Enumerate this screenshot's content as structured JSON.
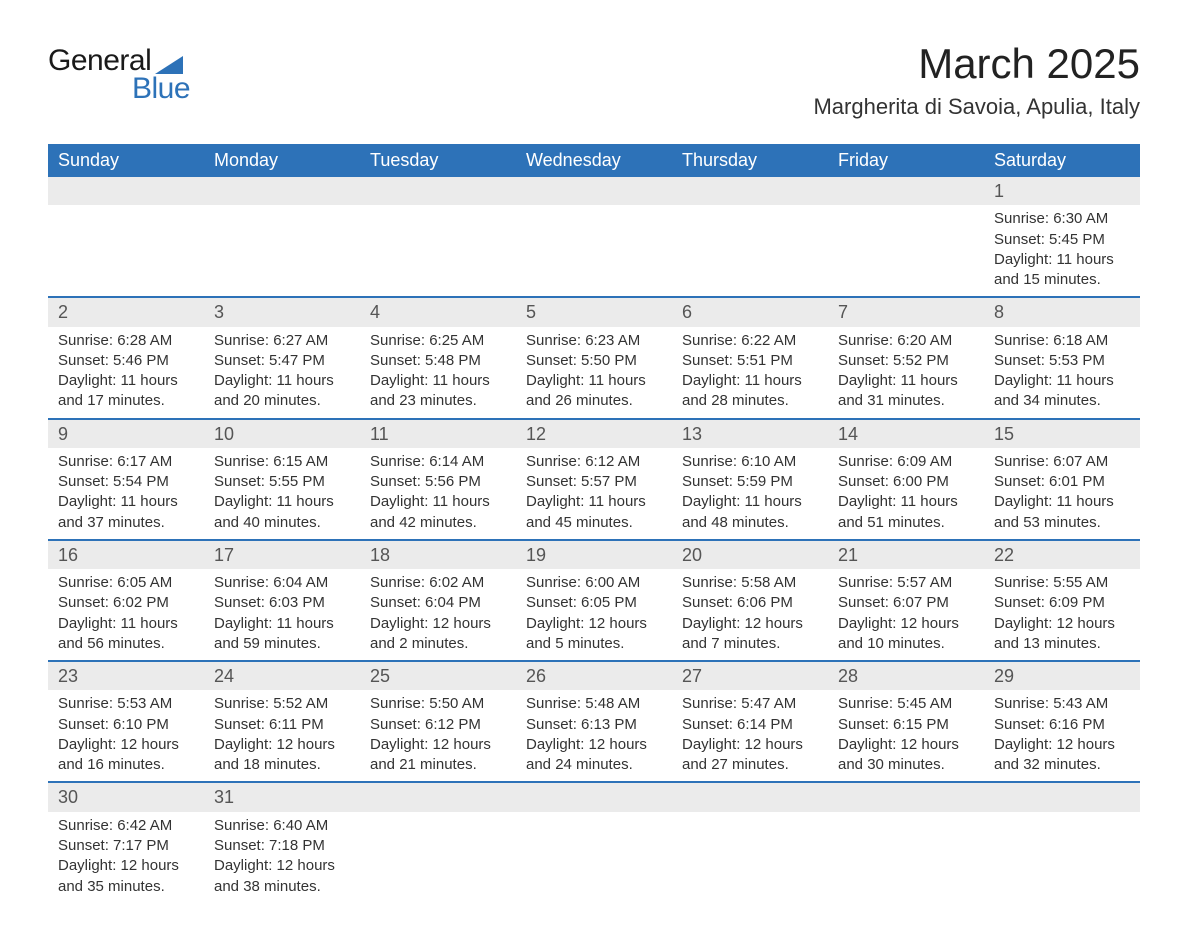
{
  "logo": {
    "word1": "General",
    "word2": "Blue",
    "triangle_color": "#2d72b8",
    "word1_color": "#1a1a1a",
    "word2_color": "#2d72b8"
  },
  "title": "March 2025",
  "location": "Margherita di Savoia, Apulia, Italy",
  "header_bg": "#2d72b8",
  "header_fg": "#ffffff",
  "row_separator_color": "#2d72b8",
  "daynum_bg": "#ebebeb",
  "text_color": "#333333",
  "day_headers": [
    "Sunday",
    "Monday",
    "Tuesday",
    "Wednesday",
    "Thursday",
    "Friday",
    "Saturday"
  ],
  "weeks": [
    {
      "nums": [
        "",
        "",
        "",
        "",
        "",
        "",
        "1"
      ],
      "detail": [
        "",
        "",
        "",
        "",
        "",
        "",
        "Sunrise: 6:30 AM\nSunset: 5:45 PM\nDaylight: 11 hours and 15 minutes."
      ]
    },
    {
      "nums": [
        "2",
        "3",
        "4",
        "5",
        "6",
        "7",
        "8"
      ],
      "detail": [
        "Sunrise: 6:28 AM\nSunset: 5:46 PM\nDaylight: 11 hours and 17 minutes.",
        "Sunrise: 6:27 AM\nSunset: 5:47 PM\nDaylight: 11 hours and 20 minutes.",
        "Sunrise: 6:25 AM\nSunset: 5:48 PM\nDaylight: 11 hours and 23 minutes.",
        "Sunrise: 6:23 AM\nSunset: 5:50 PM\nDaylight: 11 hours and 26 minutes.",
        "Sunrise: 6:22 AM\nSunset: 5:51 PM\nDaylight: 11 hours and 28 minutes.",
        "Sunrise: 6:20 AM\nSunset: 5:52 PM\nDaylight: 11 hours and 31 minutes.",
        "Sunrise: 6:18 AM\nSunset: 5:53 PM\nDaylight: 11 hours and 34 minutes."
      ]
    },
    {
      "nums": [
        "9",
        "10",
        "11",
        "12",
        "13",
        "14",
        "15"
      ],
      "detail": [
        "Sunrise: 6:17 AM\nSunset: 5:54 PM\nDaylight: 11 hours and 37 minutes.",
        "Sunrise: 6:15 AM\nSunset: 5:55 PM\nDaylight: 11 hours and 40 minutes.",
        "Sunrise: 6:14 AM\nSunset: 5:56 PM\nDaylight: 11 hours and 42 minutes.",
        "Sunrise: 6:12 AM\nSunset: 5:57 PM\nDaylight: 11 hours and 45 minutes.",
        "Sunrise: 6:10 AM\nSunset: 5:59 PM\nDaylight: 11 hours and 48 minutes.",
        "Sunrise: 6:09 AM\nSunset: 6:00 PM\nDaylight: 11 hours and 51 minutes.",
        "Sunrise: 6:07 AM\nSunset: 6:01 PM\nDaylight: 11 hours and 53 minutes."
      ]
    },
    {
      "nums": [
        "16",
        "17",
        "18",
        "19",
        "20",
        "21",
        "22"
      ],
      "detail": [
        "Sunrise: 6:05 AM\nSunset: 6:02 PM\nDaylight: 11 hours and 56 minutes.",
        "Sunrise: 6:04 AM\nSunset: 6:03 PM\nDaylight: 11 hours and 59 minutes.",
        "Sunrise: 6:02 AM\nSunset: 6:04 PM\nDaylight: 12 hours and 2 minutes.",
        "Sunrise: 6:00 AM\nSunset: 6:05 PM\nDaylight: 12 hours and 5 minutes.",
        "Sunrise: 5:58 AM\nSunset: 6:06 PM\nDaylight: 12 hours and 7 minutes.",
        "Sunrise: 5:57 AM\nSunset: 6:07 PM\nDaylight: 12 hours and 10 minutes.",
        "Sunrise: 5:55 AM\nSunset: 6:09 PM\nDaylight: 12 hours and 13 minutes."
      ]
    },
    {
      "nums": [
        "23",
        "24",
        "25",
        "26",
        "27",
        "28",
        "29"
      ],
      "detail": [
        "Sunrise: 5:53 AM\nSunset: 6:10 PM\nDaylight: 12 hours and 16 minutes.",
        "Sunrise: 5:52 AM\nSunset: 6:11 PM\nDaylight: 12 hours and 18 minutes.",
        "Sunrise: 5:50 AM\nSunset: 6:12 PM\nDaylight: 12 hours and 21 minutes.",
        "Sunrise: 5:48 AM\nSunset: 6:13 PM\nDaylight: 12 hours and 24 minutes.",
        "Sunrise: 5:47 AM\nSunset: 6:14 PM\nDaylight: 12 hours and 27 minutes.",
        "Sunrise: 5:45 AM\nSunset: 6:15 PM\nDaylight: 12 hours and 30 minutes.",
        "Sunrise: 5:43 AM\nSunset: 6:16 PM\nDaylight: 12 hours and 32 minutes."
      ]
    },
    {
      "nums": [
        "30",
        "31",
        "",
        "",
        "",
        "",
        ""
      ],
      "detail": [
        "Sunrise: 6:42 AM\nSunset: 7:17 PM\nDaylight: 12 hours and 35 minutes.",
        "Sunrise: 6:40 AM\nSunset: 7:18 PM\nDaylight: 12 hours and 38 minutes.",
        "",
        "",
        "",
        "",
        ""
      ]
    }
  ]
}
